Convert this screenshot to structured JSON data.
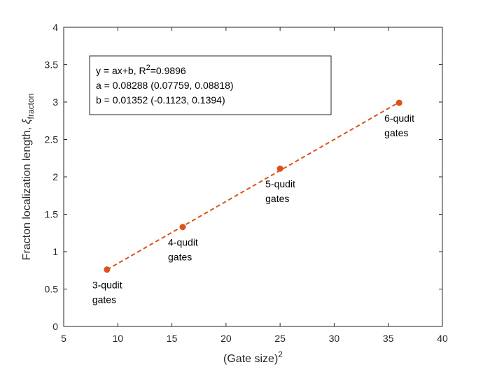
{
  "chart_data": {
    "type": "scatter",
    "xlabel": "(Gate size)",
    "xlabel_sup": "2",
    "ylabel": "Fracton localization length, ",
    "ylabel_symbol": "ξ",
    "ylabel_sub": "fracton",
    "xlim": [
      5,
      40
    ],
    "ylim": [
      0,
      4
    ],
    "xticks": [
      5,
      10,
      15,
      20,
      25,
      30,
      35,
      40
    ],
    "yticks": [
      0,
      0.5,
      1,
      1.5,
      2,
      2.5,
      3,
      3.5,
      4
    ],
    "xtick_labels": [
      "5",
      "10",
      "15",
      "20",
      "25",
      "30",
      "35",
      "40"
    ],
    "ytick_labels": [
      "0",
      "0.5",
      "1",
      "1.5",
      "2",
      "2.5",
      "3",
      "3.5",
      "4"
    ],
    "grid": false,
    "series": [
      {
        "x": [
          9,
          16,
          25,
          36
        ],
        "y": [
          0.76,
          1.33,
          2.11,
          2.99
        ],
        "color": "#D95319"
      }
    ],
    "fit": {
      "a": 0.08288,
      "b": 0.01352,
      "x_range": [
        9,
        36
      ],
      "color": "#D95319",
      "style": "dashed",
      "text_lines": [
        {
          "prefix": "y = ax+b, R",
          "sup": "2",
          "suffix": "=0.9896"
        },
        {
          "prefix": "a = 0.08288  (0.07759, 0.08818)",
          "sup": "",
          "suffix": ""
        },
        {
          "prefix": "b = 0.01352  (-0.1123, 0.1394)",
          "sup": "",
          "suffix": ""
        }
      ]
    },
    "annotations": [
      {
        "lines": [
          "3-qudit",
          "gates"
        ],
        "x": 9,
        "y": 0.76
      },
      {
        "lines": [
          "4-qudit",
          "gates"
        ],
        "x": 16,
        "y": 1.33
      },
      {
        "lines": [
          "5-qudit",
          "gates"
        ],
        "x": 25,
        "y": 2.11
      },
      {
        "lines": [
          "6-qudit",
          "gates"
        ],
        "x": 36,
        "y": 2.99
      }
    ]
  }
}
